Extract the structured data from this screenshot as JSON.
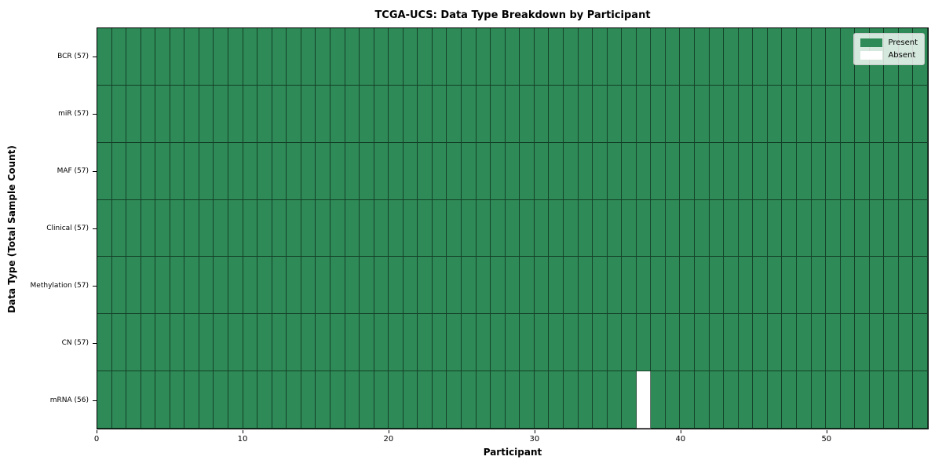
{
  "chart_data": {
    "type": "heatmap",
    "title": "TCGA-UCS: Data Type Breakdown by Participant",
    "xlabel": "Participant",
    "ylabel": "Data Type (Total Sample Count)",
    "n_participants": 57,
    "xlim": [
      0,
      57
    ],
    "x_ticks": [
      0,
      10,
      20,
      30,
      40,
      50
    ],
    "rows": [
      {
        "label": "BCR (57)",
        "data_type": "BCR",
        "present_count": 57
      },
      {
        "label": "miR (57)",
        "data_type": "miR",
        "present_count": 57
      },
      {
        "label": "MAF (57)",
        "data_type": "MAF",
        "present_count": 57
      },
      {
        "label": "Clinical (57)",
        "data_type": "Clinical",
        "present_count": 57
      },
      {
        "label": "Methylation (57)",
        "data_type": "Methylation",
        "present_count": 57
      },
      {
        "label": "CN (57)",
        "data_type": "CN",
        "present_count": 57
      },
      {
        "label": "mRNA (56)",
        "data_type": "mRNA",
        "present_count": 56
      }
    ],
    "absent_cells": [
      {
        "row_index": 6,
        "row_label": "mRNA (56)",
        "participant_index": 37
      }
    ],
    "legend": [
      {
        "label": "Present",
        "color": "#2e8b57"
      },
      {
        "label": "Absent",
        "color": "#ffffff"
      }
    ],
    "colors": {
      "present": "#2e8b57",
      "absent": "#ffffff"
    },
    "grid": "cell-borders",
    "legend_position": "upper-right"
  }
}
